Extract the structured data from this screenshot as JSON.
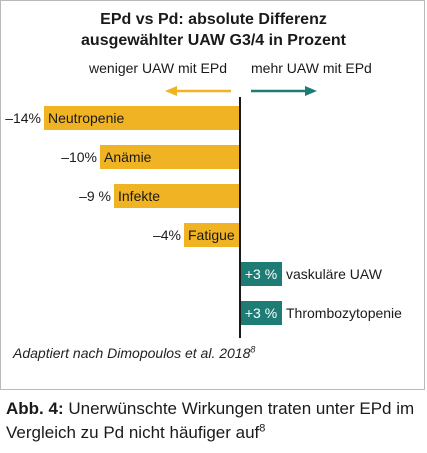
{
  "chart_data": {
    "type": "bar",
    "orientation": "horizontal",
    "title": [
      "EPd vs Pd: absolute Differenz",
      "ausgewählter UAW G3/4 in Prozent"
    ],
    "xlabel": "",
    "ylabel": "",
    "direction_labels": {
      "left": "weniger UAW mit EPd",
      "right": "mehr UAW mit EPd"
    },
    "colors": {
      "negative": "#f0b323",
      "positive": "#1d7d75",
      "left_arrow": "#f0b323",
      "right_arrow": "#1d7d75",
      "axis": "#1a1a1a"
    },
    "xlim": [
      -14,
      6
    ],
    "categories": [
      "Neutropenie",
      "Anämie",
      "Infekte",
      "Fatigue",
      "vaskuläre UAW",
      "Thrombozytopenie"
    ],
    "values": [
      -14,
      -10,
      -9,
      -4,
      3,
      3
    ],
    "value_labels": [
      "–14%",
      "–10%",
      "–9 %",
      "–4%",
      "+3 %",
      "+3 %"
    ]
  },
  "source": {
    "text": "Adaptiert nach Dimopoulos et al. 2018",
    "ref": "8"
  },
  "caption": {
    "label": "Abb. 4:",
    "text": " Unerwünschte Wirkungen traten unter EPd im Vergleich zu Pd nicht häufiger auf",
    "ref": "8"
  }
}
